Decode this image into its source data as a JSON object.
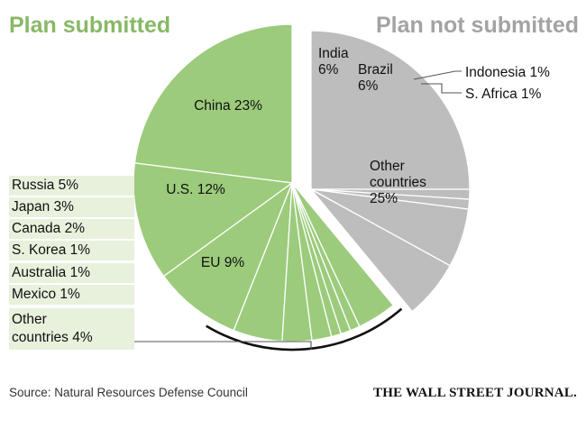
{
  "headers": {
    "left": "Plan submitted",
    "right": "Plan not submitted"
  },
  "colors": {
    "submitted": "#9ccb7c",
    "not_submitted": "#bdbdbd",
    "legend_bg": "#e7f1dc"
  },
  "legend_items": [
    {
      "label": "Russia 5%"
    },
    {
      "label": "Japan 3%"
    },
    {
      "label": "Canada 2%"
    },
    {
      "label": "S. Korea 1%"
    },
    {
      "label": "Australia 1%"
    },
    {
      "label": "Mexico 1%"
    },
    {
      "label": "Other countries 4%",
      "line1": "Other",
      "line2": "countries 4%"
    }
  ],
  "callouts": {
    "indonesia": "Indonesia 1%",
    "s_africa": "S. Africa 1%"
  },
  "footer": {
    "source": "Source: Natural Resources Defense Council",
    "brand": "THE WALL STREET JOURNAL."
  },
  "chart_data": {
    "type": "pie",
    "title": "",
    "groups": [
      "Plan submitted",
      "Plan not submitted"
    ],
    "slices": [
      {
        "name": "China",
        "value": 23,
        "group": "Plan submitted",
        "label_lines": [
          "China 23%"
        ]
      },
      {
        "name": "U.S.",
        "value": 12,
        "group": "Plan submitted",
        "label_lines": [
          "U.S. 12%"
        ]
      },
      {
        "name": "EU",
        "value": 9,
        "group": "Plan submitted",
        "label_lines": [
          "EU 9%"
        ]
      },
      {
        "name": "Russia",
        "value": 5,
        "group": "Plan submitted",
        "label_lines": []
      },
      {
        "name": "Japan",
        "value": 3,
        "group": "Plan submitted",
        "label_lines": []
      },
      {
        "name": "Canada",
        "value": 2,
        "group": "Plan submitted",
        "label_lines": []
      },
      {
        "name": "S. Korea",
        "value": 1,
        "group": "Plan submitted",
        "label_lines": []
      },
      {
        "name": "Australia",
        "value": 1,
        "group": "Plan submitted",
        "label_lines": []
      },
      {
        "name": "Mexico",
        "value": 1,
        "group": "Plan submitted",
        "label_lines": []
      },
      {
        "name": "Other countries (plan submitted)",
        "value": 4,
        "group": "Plan submitted",
        "label_lines": []
      },
      {
        "name": "Other countries",
        "value": 25,
        "group": "Plan not submitted",
        "label_lines": [
          "Other",
          "countries",
          "25%"
        ]
      },
      {
        "name": "S. Africa",
        "value": 1,
        "group": "Plan not submitted",
        "label_lines": []
      },
      {
        "name": "Indonesia",
        "value": 1,
        "group": "Plan not submitted",
        "label_lines": []
      },
      {
        "name": "Brazil",
        "value": 6,
        "group": "Plan not submitted",
        "label_lines": [
          "Brazil",
          "6%"
        ]
      },
      {
        "name": "India",
        "value": 6,
        "group": "Plan not submitted",
        "label_lines": [
          "India",
          "6%"
        ]
      }
    ]
  }
}
